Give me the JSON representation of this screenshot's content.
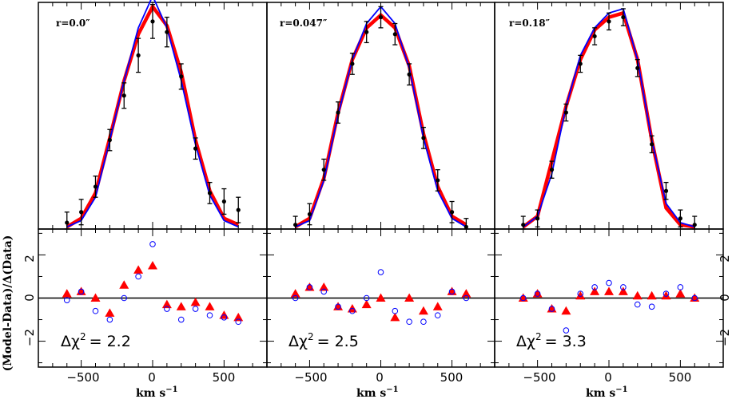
{
  "chart_data": {
    "type": "line",
    "ylabel_residual": "(Model-Data)/Δ(Data)",
    "xlabel_unit": "km s",
    "xlabel_exp": "−1",
    "xlim": [
      -800,
      800
    ],
    "profile_ylim": [
      0,
      1.07
    ],
    "residual_ylim": [
      -3.2,
      3.2
    ],
    "residual_yticks": [
      "2",
      "0",
      "−2"
    ],
    "x_ticks": [
      "−500",
      "0",
      "500"
    ],
    "colors": {
      "model_red": "#ff0000",
      "model_blue": "#0000ff",
      "data": "#000000",
      "zero_line": "#000000"
    },
    "x": [
      -600,
      -500,
      -400,
      -300,
      -200,
      -100,
      0,
      100,
      200,
      300,
      400,
      500,
      600
    ],
    "panels": [
      {
        "r_label": "r=0.0″",
        "chi_text": "Δχ",
        "chi_sup": "2",
        "chi_value": "= 2.2",
        "data": [
          0.03,
          0.08,
          0.2,
          0.42,
          0.63,
          0.82,
          0.98,
          0.93,
          0.72,
          0.38,
          0.17,
          0.13,
          0.09
        ],
        "err": [
          0.05,
          0.06,
          0.05,
          0.05,
          0.06,
          0.08,
          0.08,
          0.07,
          0.06,
          0.05,
          0.05,
          0.06,
          0.06
        ],
        "model_red": [
          0.01,
          0.05,
          0.17,
          0.43,
          0.7,
          0.92,
          1.05,
          0.96,
          0.74,
          0.42,
          0.18,
          0.05,
          0.02
        ],
        "model_blue": [
          0.01,
          0.04,
          0.15,
          0.42,
          0.7,
          0.95,
          1.1,
          0.95,
          0.7,
          0.4,
          0.16,
          0.04,
          0.01
        ],
        "res_red": [
          0.2,
          0.3,
          0.0,
          -0.7,
          0.6,
          1.3,
          1.5,
          -0.3,
          -0.4,
          -0.2,
          -0.4,
          -0.8,
          -0.9
        ],
        "res_blue": [
          -0.1,
          0.3,
          -0.6,
          -1.0,
          0.0,
          1.0,
          2.5,
          -0.5,
          -1.0,
          -0.5,
          -0.8,
          -0.9,
          -1.1
        ]
      },
      {
        "r_label": "r=0.047″",
        "chi_text": "Δχ",
        "chi_sup": "2",
        "chi_value": "= 2.5",
        "data": [
          0.02,
          0.07,
          0.28,
          0.55,
          0.78,
          0.93,
          1.0,
          0.92,
          0.73,
          0.43,
          0.23,
          0.08,
          0.01
        ],
        "err": [
          0.04,
          0.05,
          0.05,
          0.05,
          0.05,
          0.05,
          0.05,
          0.05,
          0.05,
          0.05,
          0.05,
          0.05,
          0.04
        ],
        "model_red": [
          0.01,
          0.05,
          0.24,
          0.55,
          0.8,
          0.95,
          1.01,
          0.95,
          0.77,
          0.45,
          0.2,
          0.06,
          0.02
        ],
        "model_blue": [
          0.01,
          0.04,
          0.23,
          0.54,
          0.8,
          0.97,
          1.05,
          0.97,
          0.76,
          0.43,
          0.18,
          0.05,
          0.01
        ],
        "res_red": [
          0.2,
          0.5,
          0.5,
          -0.4,
          -0.5,
          -0.3,
          0.0,
          -0.9,
          0.0,
          -0.6,
          -0.4,
          0.3,
          0.2
        ],
        "res_blue": [
          0.0,
          0.5,
          0.3,
          -0.4,
          -0.6,
          0.0,
          1.2,
          -0.6,
          -1.1,
          -1.1,
          -0.8,
          0.3,
          0.0
        ]
      },
      {
        "r_label": "r=0.18″",
        "chi_text": "Δχ",
        "chi_sup": "2",
        "chi_value": "= 3.3",
        "data": [
          0.02,
          0.05,
          0.28,
          0.55,
          0.78,
          0.91,
          0.98,
          1.0,
          0.76,
          0.4,
          0.18,
          0.05,
          0.02
        ],
        "err": [
          0.04,
          0.04,
          0.04,
          0.04,
          0.04,
          0.04,
          0.04,
          0.04,
          0.04,
          0.04,
          0.04,
          0.04,
          0.04
        ],
        "model_red": [
          0.01,
          0.06,
          0.32,
          0.58,
          0.8,
          0.94,
          1.0,
          1.02,
          0.8,
          0.42,
          0.1,
          0.02,
          0.01
        ],
        "model_blue": [
          0.01,
          0.06,
          0.26,
          0.58,
          0.82,
          0.95,
          1.02,
          1.04,
          0.8,
          0.42,
          0.12,
          0.03,
          0.01
        ],
        "res_red": [
          0.0,
          0.2,
          -0.5,
          -0.6,
          0.1,
          0.3,
          0.3,
          0.3,
          0.1,
          0.1,
          0.1,
          0.2,
          0.0
        ],
        "res_blue": [
          0.0,
          0.2,
          -0.5,
          -1.5,
          0.2,
          0.5,
          0.7,
          0.5,
          -0.3,
          -0.4,
          0.2,
          0.5,
          0.0
        ]
      }
    ]
  }
}
